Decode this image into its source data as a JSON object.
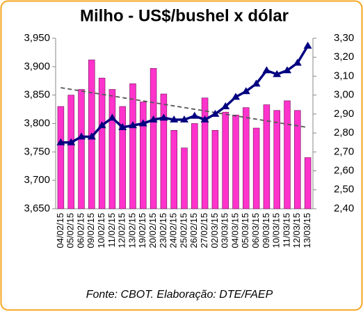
{
  "chart_data": {
    "type": "bar_line",
    "title": "Milho - US$/bushel x dólar",
    "source": "Fonte: CBOT. Elaboração: DTE/FAEP",
    "categories": [
      "04/02/15",
      "05/02/15",
      "06/02/15",
      "09/02/15",
      "10/02/15",
      "11/02/15",
      "12/02/15",
      "13/02/15",
      "19/02/15",
      "20/02/15",
      "23/02/15",
      "24/02/15",
      "25/02/15",
      "26/02/15",
      "27/02/15",
      "02/03/15",
      "03/03/15",
      "04/03/15",
      "05/03/15",
      "06/03/15",
      "09/03/15",
      "10/03/15",
      "11/03/15",
      "12/03/15",
      "13/03/15"
    ],
    "series": [
      {
        "color": "#ff33cc",
        "values": [
          3.83,
          3.85,
          3.86,
          3.912,
          3.88,
          3.86,
          3.83,
          3.87,
          3.838,
          3.897,
          3.852,
          3.788,
          3.757,
          3.8,
          3.845,
          3.788,
          3.82,
          3.815,
          3.828,
          3.792,
          3.833,
          3.823,
          3.84,
          3.823,
          3.74
        ]
      },
      {
        "color": "#000080",
        "axis": "y2",
        "values": [
          2.75,
          2.75,
          2.78,
          2.78,
          2.84,
          2.88,
          2.83,
          2.84,
          2.85,
          2.87,
          2.88,
          2.87,
          2.87,
          2.89,
          2.87,
          2.9,
          2.94,
          2.99,
          3.02,
          3.06,
          3.13,
          3.11,
          3.13,
          3.17,
          3.26
        ]
      }
    ],
    "trendline": {
      "color": "#555555",
      "start": 3.863,
      "end": 3.793
    },
    "ylim": [
      3.65,
      3.95
    ],
    "yticks": [
      {
        "value": 3.65,
        "label": "3,650"
      },
      {
        "value": 3.7,
        "label": "3,700"
      },
      {
        "value": 3.75,
        "label": "3,750"
      },
      {
        "value": 3.8,
        "label": "3,800"
      },
      {
        "value": 3.85,
        "label": "3,850"
      },
      {
        "value": 3.9,
        "label": "3,900"
      },
      {
        "value": 3.95,
        "label": "3,950"
      }
    ],
    "y2lim": [
      2.4,
      3.3
    ],
    "y2ticks": [
      {
        "value": 2.4,
        "label": "2,40"
      },
      {
        "value": 2.5,
        "label": "2,50"
      },
      {
        "value": 2.6,
        "label": "2,60"
      },
      {
        "value": 2.7,
        "label": "2,70"
      },
      {
        "value": 2.8,
        "label": "2,80"
      },
      {
        "value": 2.9,
        "label": "2,90"
      },
      {
        "value": 3.0,
        "label": "3,00"
      },
      {
        "value": 3.1,
        "label": "3,10"
      },
      {
        "value": 3.2,
        "label": "3,20"
      },
      {
        "value": 3.3,
        "label": "3,30"
      }
    ]
  }
}
